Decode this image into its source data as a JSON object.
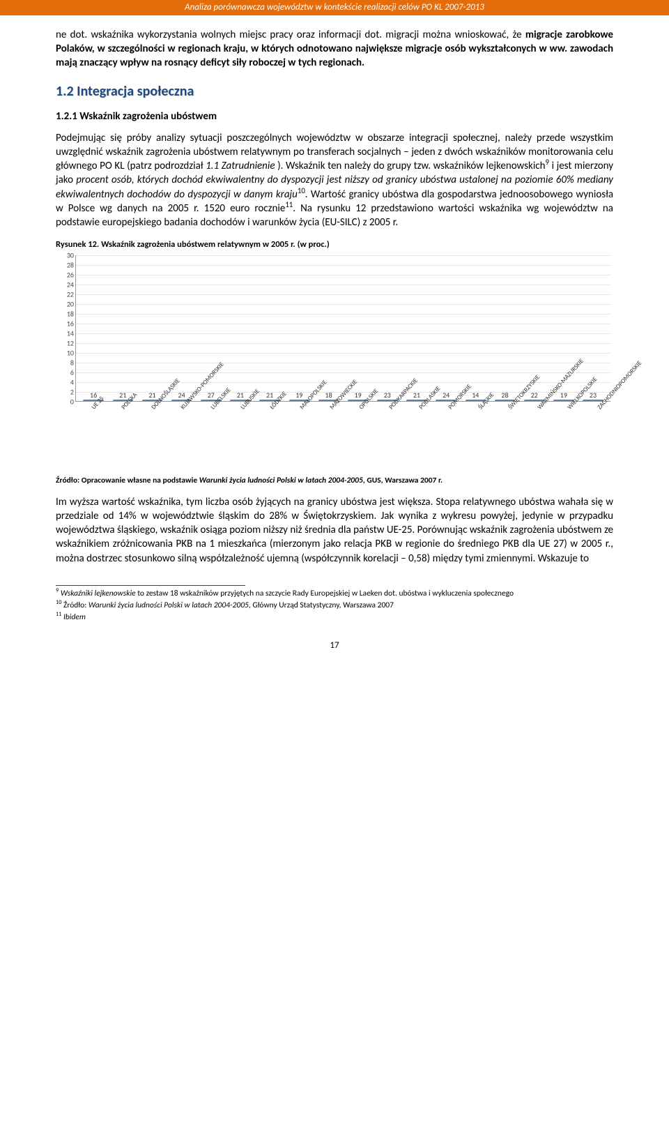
{
  "header": "Analiza porównawcza województw w kontekście realizacji celów PO KL 2007-2013",
  "para1_pre": "ne dot. wskaźnika wykorzystania wolnych miejsc pracy oraz informacji dot. migracji można wnioskować, że ",
  "para1_bold": "migracje zarobkowe Polaków, w szczególności w regionach kraju, w których odnotowano największe migracje osób wykształconych w ww. zawodach mają znaczący wpływ na rosnący deficyt siły roboczej w tych regionach.",
  "section_title": "1.2 Integracja społeczna",
  "subsection_title": "1.2.1 Wskaźnik zagrożenia ubóstwem",
  "para2": "Podejmując się próby analizy sytuacji poszczególnych województw w obszarze integracji społecznej, należy przede wszystkim uwzględnić wskaźnik zagrożenia ubóstwem relatywnym po transferach socjalnych – jeden z dwóch wskaźników monitorowania celu głównego PO KL (patrz podrozdział ",
  "para2_i1": "1.1 Zatrudnienie ",
  "para2_b": "). Wskaźnik ten należy do grupy tzw. wskaźników lejkenowskich",
  "para2_sup1": "9",
  "para2_c": " i jest mierzony jako ",
  "para2_i2": "procent osób, których dochód ekwiwalentny do dyspozycji jest niższy od granicy ubóstwa ustalonej na poziomie 60% mediany ekwiwalentnych dochodów do dyspozycji w danym kraju",
  "para2_sup2": "10",
  "para2_d": ". Wartość granicy ubóstwa dla gospodarstwa jednoosobowego wyniosła w Polsce wg danych na 2005 r. 1520 euro rocznie",
  "para2_sup3": "11",
  "para2_e": ". Na rysunku 12 przedstawiono wartości wskaźnika wg województw na podstawie europejskiego badania dochodów i warunków życia (EU-SILC) z 2005 r.",
  "chart_caption": "Rysunek 12. Wskaźnik zagrożenia ubóstwem relatywnym w 2005 r. (w proc.)",
  "chart": {
    "ylim_max": 30,
    "ytick_step": 2,
    "categories": [
      "UE 25",
      "POLSKA",
      "DOLNOŚLĄSKIE",
      "KUJAWSKO-POMORSKIE",
      "LUBELSKIE",
      "LUBUSKIE",
      "ŁÓDZKIE",
      "MAŁOPOLSKIE",
      "MAZOWIECKIE",
      "OPOLSKIE",
      "PODKARPACKIE",
      "PODLASKIE",
      "POMORSKIE",
      "ŚLĄSKIE",
      "ŚWIĘTOKRZYSKIE",
      "WARMIŃSKO-MAZURSKIE",
      "WIELKOPOLSKIE",
      "ZACHODNIOPOMORSKIE"
    ],
    "values": [
      16,
      21,
      21,
      24,
      27,
      21,
      21,
      19,
      18,
      19,
      23,
      21,
      24,
      14,
      28,
      22,
      19,
      23
    ]
  },
  "chart_source_a": "Źródło: Opracowanie własne na podstawie ",
  "chart_source_i": "Warunki życia ludności Polski w latach 2004-2005",
  "chart_source_b": ", GUS, Warszawa 2007 r.",
  "para3": "Im wyższa wartość wskaźnika, tym liczba osób żyjących na granicy ubóstwa jest większa. Stopa relatywnego ubóstwa wahała się w przedziale od 14% w województwie śląskim do 28% w Świętokrzyskiem. Jak wynika z wykresu powyżej, jedynie w przypadku województwa śląskiego, wskaźnik osiąga poziom niższy niż średnia dla państw UE-25. Porównując wskaźnik zagrożenia ubóstwem ze wskaźnikiem zróżnicowania PKB na 1 mieszkańca (mierzonym jako relacja PKB w regionie do średniego PKB dla UE 27) w 2005 r., można dostrzec stosunkowo silną współzależność ujemną (współczynnik korelacji – 0,58) między tymi zmiennymi. Wskazuje to",
  "fn9_sup": "9",
  "fn9_a": " ",
  "fn9_i": "Wskaźniki lejkenowskie",
  "fn9_b": " to zestaw 18 wskaźników przyjętych na szczycie Rady Europejskiej w Laeken dot. ubóstwa i wykluczenia społecznego",
  "fn10_sup": "10",
  "fn10_a": " Źródło: ",
  "fn10_i": "Warunki życia ludności Polski w latach 2004-2005",
  "fn10_b": ", Główny Urząd Statystyczny, Warszawa 2007",
  "fn11_sup": "11",
  "fn11_a": " ",
  "fn11_i": "Ibidem",
  "pagenum": "17"
}
